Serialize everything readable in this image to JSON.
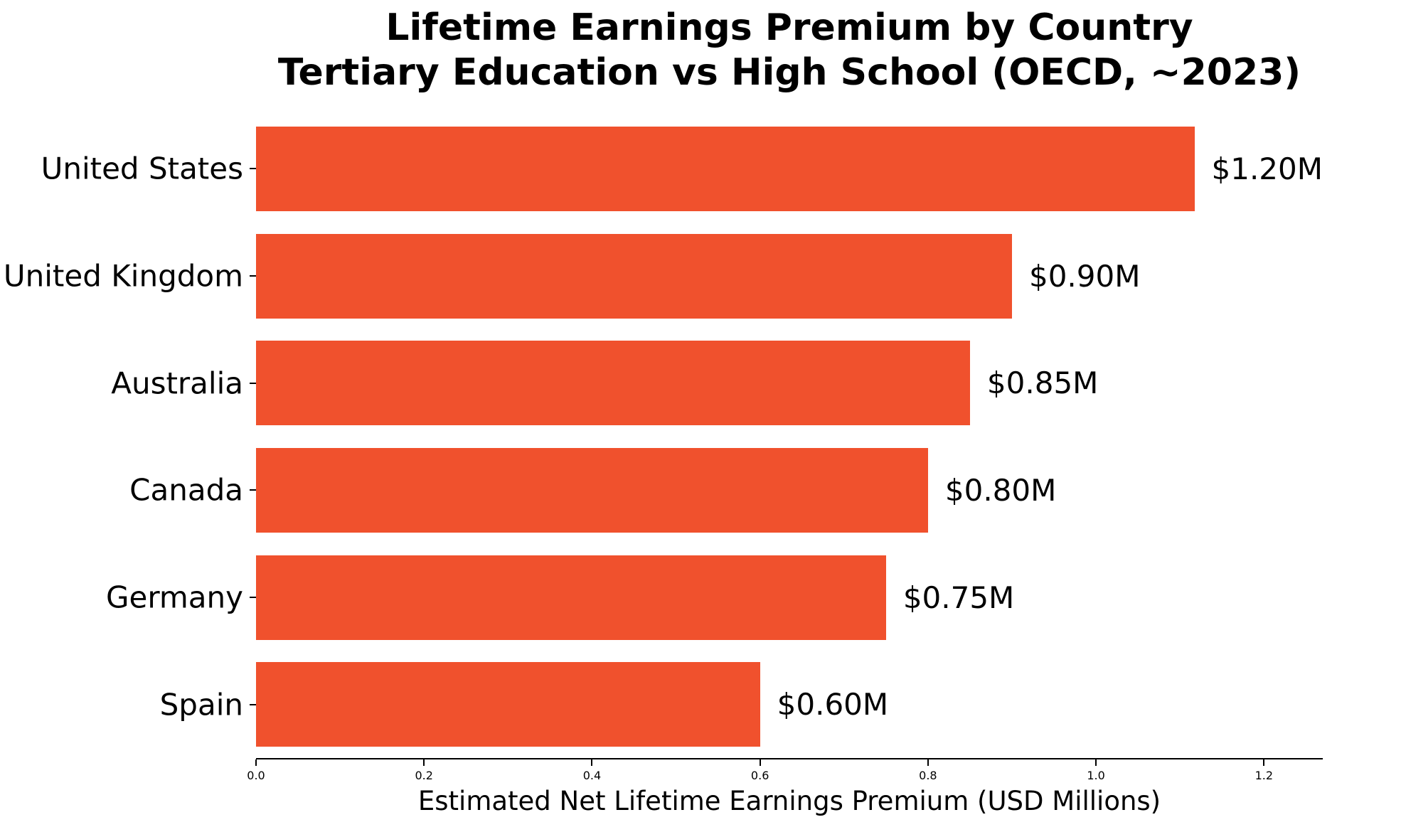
{
  "title": {
    "line1": "Lifetime Earnings Premium by Country",
    "line2": "Tertiary Education vs High School (OECD, ~2023)"
  },
  "chart_data": {
    "type": "bar",
    "orientation": "horizontal",
    "title": "Lifetime Earnings Premium by Country\nTertiary Education vs High School (OECD, ~2023)",
    "categories": [
      "United States",
      "United Kingdom",
      "Australia",
      "Canada",
      "Germany",
      "Spain"
    ],
    "values": [
      1.2,
      0.9,
      0.85,
      0.8,
      0.75,
      0.6
    ],
    "value_labels": [
      "$1.20M",
      "$0.90M",
      "$0.85M",
      "$0.80M",
      "$0.75M",
      "$0.60M"
    ],
    "xlabel": "Estimated Net Lifetime Earnings Premium (USD Millions)",
    "ylabel": "",
    "xlim": [
      0.0,
      1.27
    ],
    "xticks": [
      0.0,
      0.2,
      0.4,
      0.6,
      0.8,
      1.0,
      1.2
    ],
    "xtick_labels": [
      "0.0",
      "0.2",
      "0.4",
      "0.6",
      "0.8",
      "1.0",
      "1.2"
    ],
    "bar_color": "#F0512D",
    "text_color": "#000000",
    "background_color": "#ffffff",
    "grid": false,
    "legend": false
  }
}
